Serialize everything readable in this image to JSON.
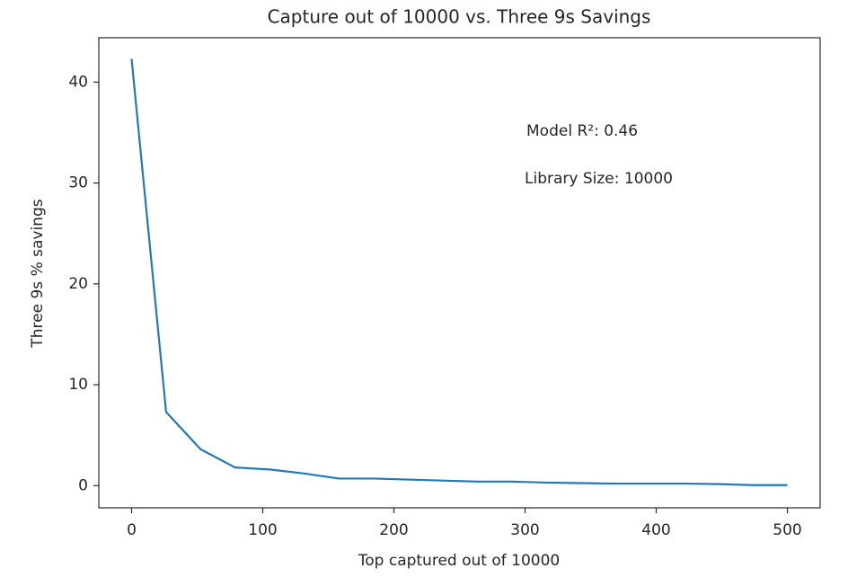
{
  "chart_data": {
    "type": "line",
    "title": "Capture out of 10000 vs. Three 9s Savings",
    "x_label": "Top captured out of 10000",
    "y_label": "Three 9s % savings",
    "annotations": [
      "Model R²: 0.46",
      "Library Size: 10000"
    ],
    "x": [
      0,
      26.3,
      52.6,
      78.9,
      105.3,
      131.6,
      157.9,
      184.2,
      210.5,
      236.8,
      263.2,
      289.5,
      315.8,
      342.1,
      368.4,
      394.7,
      421.1,
      447.4,
      473.7,
      500
    ],
    "series": [
      {
        "name": "Three 9s % savings",
        "color": "#2279b5",
        "values": [
          42.3,
          7.3,
          3.6,
          1.8,
          1.6,
          1.2,
          0.7,
          0.7,
          0.6,
          0.5,
          0.4,
          0.4,
          0.3,
          0.25,
          0.2,
          0.2,
          0.2,
          0.15,
          0.05,
          0.05
        ]
      }
    ],
    "xlim": [
      -25,
      525
    ],
    "ylim": [
      -2.2,
      44.4
    ],
    "xticks": [
      0,
      100,
      200,
      300,
      400,
      500
    ],
    "yticks": [
      0,
      10,
      20,
      30,
      40
    ],
    "grid": false
  }
}
